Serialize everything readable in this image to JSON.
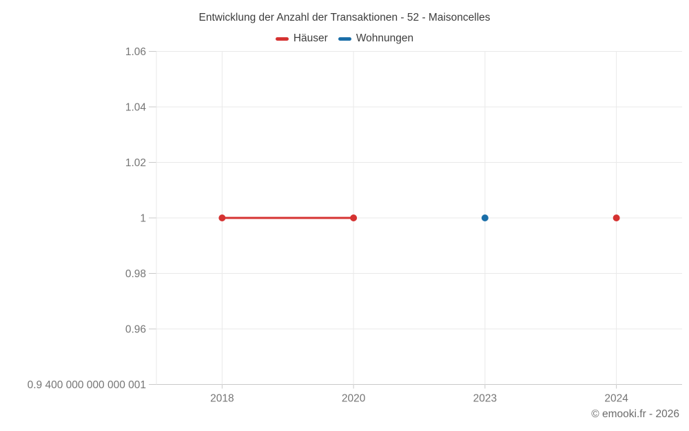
{
  "title": "Entwicklung der Anzahl der Transaktionen - 52 - Maisoncelles",
  "footer": "© emooki.fr - 2026",
  "legend": {
    "items": [
      {
        "label": "Häuser",
        "color": "#d53231"
      },
      {
        "label": "Wohnungen",
        "color": "#1a6ea8"
      }
    ]
  },
  "colors": {
    "haeuser": "#d53231",
    "wohnungen": "#1a6ea8",
    "gridline": "#e9e9e9",
    "axis": "#c9c9c9",
    "axis_label": "#757575",
    "title_text": "#3d3d3d"
  },
  "chart_data": {
    "type": "line",
    "title": "Entwicklung der Anzahl der Transaktionen - 52 - Maisoncelles",
    "xlabel": "",
    "ylabel": "",
    "categories": [
      "2018",
      "2020",
      "2023",
      "2024"
    ],
    "series": [
      {
        "name": "Häuser",
        "color": "#d53231",
        "values": [
          1,
          1,
          null,
          1
        ]
      },
      {
        "name": "Wohnungen",
        "color": "#1a6ea8",
        "values": [
          null,
          null,
          1,
          null
        ]
      }
    ],
    "connect_nulls": false,
    "grid": true,
    "legend_position": "top",
    "ylim": [
      0.9400000000000001,
      1.06
    ],
    "y_ticks": [
      {
        "label": "1.06",
        "value": 1.06
      },
      {
        "label": "1.04",
        "value": 1.04
      },
      {
        "label": "1.02",
        "value": 1.02
      },
      {
        "label": "1",
        "value": 1.0
      },
      {
        "label": "0.98",
        "value": 0.98
      },
      {
        "label": "0.96",
        "value": 0.96
      },
      {
        "label": "0.9 400 000 000 000 001",
        "value": 0.94
      }
    ]
  }
}
